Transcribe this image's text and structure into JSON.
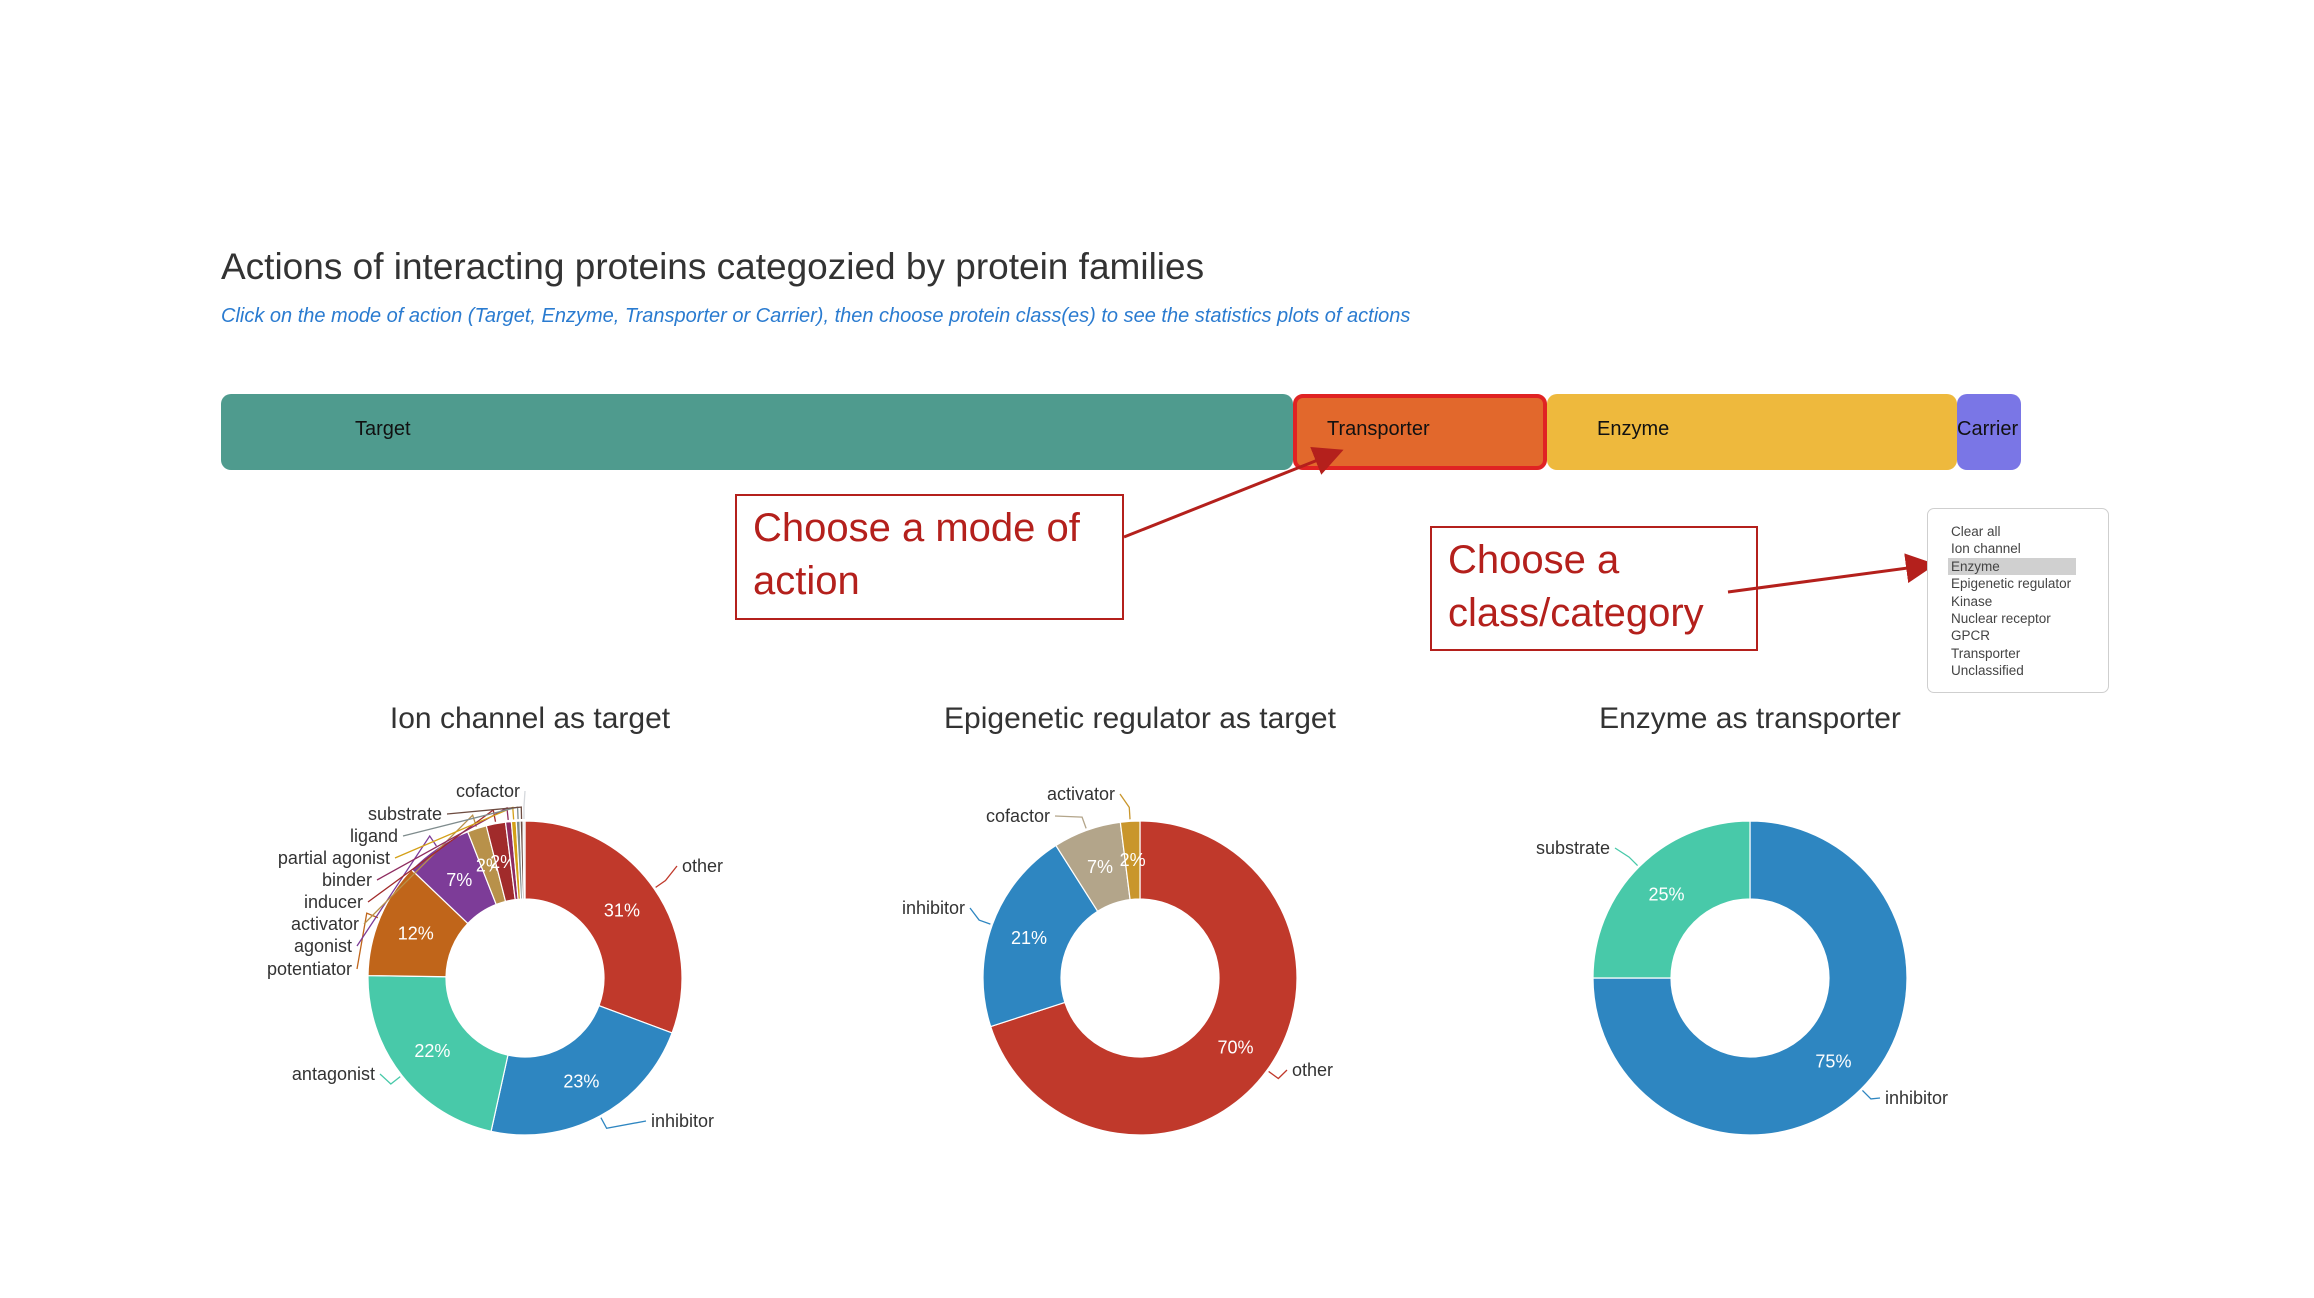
{
  "header": {
    "title": "Actions of interacting proteins categozied by protein families",
    "subtitle": "Click on the mode of action (Target, Enzyme, Transporter or Carrier), then choose protein class(es) to see the statistics plots of actions"
  },
  "mode_bar": {
    "segments": [
      {
        "label": "Target",
        "color": "#4f9b8e"
      },
      {
        "label": "Transporter",
        "color": "#e2682c",
        "selected": true
      },
      {
        "label": "Enzyme",
        "color": "#eeb93d"
      },
      {
        "label": "Carrier",
        "color": "#7a76e6"
      }
    ]
  },
  "callouts": {
    "mode": "Choose a mode of action",
    "class": "Choose a class/category"
  },
  "class_list": {
    "items": [
      "Clear all",
      "Ion channel",
      "Enzyme",
      "Epigenetic regulator",
      "Kinase",
      "Nuclear receptor",
      "GPCR",
      "Transporter",
      "Unclassified"
    ],
    "selected": "Enzyme"
  },
  "chart_data": [
    {
      "type": "pie",
      "title": "Ion channel as target",
      "categories": [
        "other",
        "inhibitor",
        "antagonist",
        "potentiator",
        "agonist",
        "activator",
        "inducer",
        "binder",
        "partial agonist",
        "ligand",
        "substrate",
        "cofactor"
      ],
      "values": [
        31,
        23,
        22,
        12,
        7,
        2,
        2,
        0.6,
        0.5,
        0.4,
        0.3,
        0.2
      ],
      "slice_labels": [
        "31%",
        "23%",
        "22%",
        "12%",
        "7%",
        "2%",
        "2%",
        "",
        "",
        "",
        "",
        ""
      ],
      "colors": [
        "#c0392b",
        "#2e86c1",
        "#48c9a9",
        "#c0651a",
        "#7d3c98",
        "#b8914a",
        "#a12b2b",
        "#8e2c60",
        "#d4a017",
        "#7f8c8d",
        "#6d4c41",
        "#d5d8dc"
      ]
    },
    {
      "type": "pie",
      "title": "Epigenetic regulator as target",
      "categories": [
        "other",
        "inhibitor",
        "cofactor",
        "activator"
      ],
      "values": [
        70,
        21,
        7,
        2
      ],
      "slice_labels": [
        "70%",
        "21%",
        "7%",
        "2%"
      ],
      "colors": [
        "#c0392b",
        "#2e86c1",
        "#b3a58a",
        "#c9962c"
      ]
    },
    {
      "type": "pie",
      "title": "Enzyme as transporter",
      "categories": [
        "inhibitor",
        "substrate"
      ],
      "values": [
        75,
        25
      ],
      "slice_labels": [
        "75%",
        "25%"
      ],
      "colors": [
        "#2e86c1",
        "#48c9a9"
      ]
    }
  ]
}
